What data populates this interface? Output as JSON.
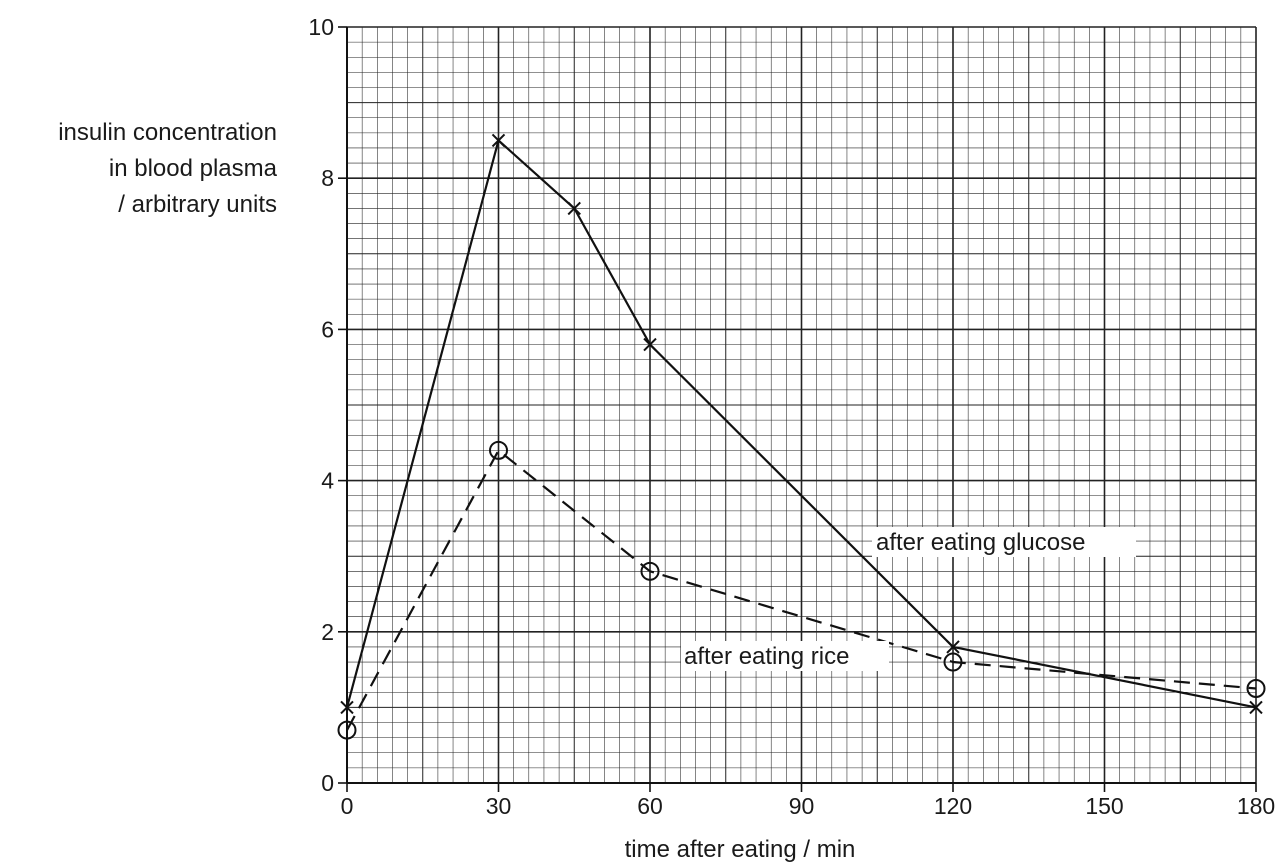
{
  "chart_data": {
    "type": "line",
    "title": "",
    "xlabel": "time after eating / min",
    "ylabel_lines": [
      "insulin concentration",
      "in blood plasma",
      "/ arbitrary units"
    ],
    "xlim": [
      0,
      180
    ],
    "ylim": [
      0,
      10
    ],
    "x_major_ticks": [
      0,
      30,
      60,
      90,
      120,
      150,
      180
    ],
    "y_major_ticks": [
      0,
      2,
      4,
      6,
      8,
      10
    ],
    "grid": true,
    "legend": "none",
    "series": [
      {
        "name": "after eating glucose",
        "line_style": "solid",
        "marker": "cross",
        "x": [
          0,
          30,
          45,
          60,
          120,
          180
        ],
        "y": [
          1.0,
          8.5,
          7.6,
          5.8,
          1.8,
          1.0
        ]
      },
      {
        "name": "after eating rice",
        "line_style": "dashed",
        "marker": "circle",
        "x": [
          0,
          30,
          60,
          120,
          180
        ],
        "y": [
          0.7,
          4.4,
          2.8,
          1.6,
          1.25
        ]
      }
    ],
    "annotations": [
      {
        "text": "after eating glucose",
        "series": 0
      },
      {
        "text": "after eating rice",
        "series": 1
      }
    ]
  }
}
